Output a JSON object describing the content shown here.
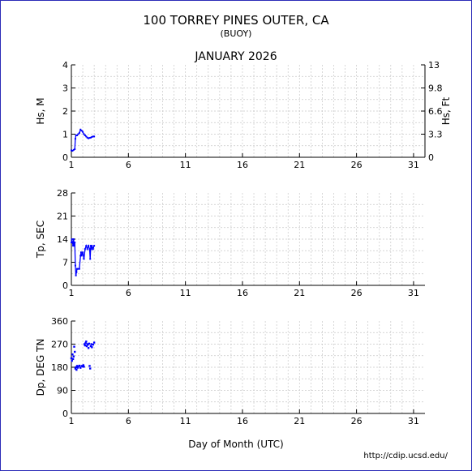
{
  "header": {
    "title": "100 TORREY PINES OUTER, CA",
    "subtitle": "(BUOY)",
    "month": "JANUARY 2026"
  },
  "xlabel": "Day of Month (UTC)",
  "footer": "http://cdip.ucsd.edu/",
  "colors": {
    "series": "#0000ff",
    "grid": "#c8c8c8",
    "frame": "#2b2bb8"
  },
  "chart_data": [
    {
      "type": "line",
      "ylabel": "Hs, M",
      "ylabel_right": "Hs, Ft",
      "xlim": [
        1,
        32
      ],
      "x_ticks": [
        1,
        6,
        11,
        16,
        21,
        26,
        31
      ],
      "ylim": [
        0,
        4
      ],
      "y_ticks": [
        0,
        1,
        2,
        3,
        4
      ],
      "y_right_ticks": [
        "0",
        "3.3",
        "6.6",
        "9.8",
        "13"
      ],
      "grid": true,
      "series": [
        {
          "x": [
            1.0,
            1.1,
            1.2,
            1.3,
            1.35,
            1.4,
            1.5,
            1.6,
            1.7,
            1.8,
            1.9,
            2.0,
            2.1,
            2.2,
            2.3,
            2.4,
            2.5,
            2.6,
            2.7,
            2.8,
            2.9,
            3.0
          ],
          "values": [
            0.3,
            0.28,
            0.32,
            0.35,
            0.8,
            0.95,
            0.95,
            1.0,
            1.05,
            1.2,
            1.15,
            1.1,
            1.0,
            0.95,
            0.9,
            0.85,
            0.82,
            0.84,
            0.85,
            0.88,
            0.9,
            0.9
          ]
        }
      ]
    },
    {
      "type": "line",
      "ylabel": "Tp, SEC",
      "xlim": [
        1,
        32
      ],
      "x_ticks": [
        1,
        6,
        11,
        16,
        21,
        26,
        31
      ],
      "ylim": [
        0,
        28
      ],
      "y_ticks": [
        0,
        7,
        14,
        21,
        28
      ],
      "grid": true,
      "series": [
        {
          "x": [
            1.0,
            1.05,
            1.1,
            1.15,
            1.2,
            1.25,
            1.3,
            1.35,
            1.4,
            1.45,
            1.5,
            1.6,
            1.7,
            1.8,
            1.85,
            1.9,
            2.0,
            2.1,
            2.2,
            2.3,
            2.4,
            2.5,
            2.6,
            2.65,
            2.7,
            2.75,
            2.8,
            2.9,
            3.0
          ],
          "values": [
            13,
            14,
            13,
            12,
            14,
            12,
            13,
            6,
            3,
            4,
            5,
            5,
            5,
            9,
            10,
            9,
            10,
            8,
            11,
            12,
            11,
            12,
            11,
            8,
            12,
            11,
            12,
            11,
            12
          ]
        }
      ]
    },
    {
      "type": "scatter",
      "ylabel": "Dp, DEG TN",
      "xlim": [
        1,
        32
      ],
      "x_ticks": [
        1,
        6,
        11,
        16,
        21,
        26,
        31
      ],
      "ylim": [
        0,
        360
      ],
      "y_ticks": [
        0,
        90,
        180,
        270,
        360
      ],
      "grid": true,
      "series": [
        {
          "x": [
            1.0,
            1.05,
            1.1,
            1.15,
            1.2,
            1.25,
            1.3,
            1.35,
            1.4,
            1.45,
            1.5,
            1.55,
            1.6,
            1.7,
            1.8,
            1.9,
            2.0,
            2.05,
            2.1,
            2.15,
            2.2,
            2.25,
            2.3,
            2.35,
            2.4,
            2.45,
            2.5,
            2.55,
            2.6,
            2.65,
            2.7,
            2.75,
            2.8,
            2.9,
            3.0
          ],
          "values": [
            215,
            205,
            230,
            212,
            222,
            260,
            240,
            175,
            180,
            170,
            185,
            178,
            182,
            186,
            178,
            185,
            183,
            188,
            182,
            270,
            265,
            275,
            280,
            262,
            270,
            268,
            255,
            272,
            185,
            175,
            262,
            270,
            258,
            268,
            276
          ]
        }
      ]
    }
  ]
}
